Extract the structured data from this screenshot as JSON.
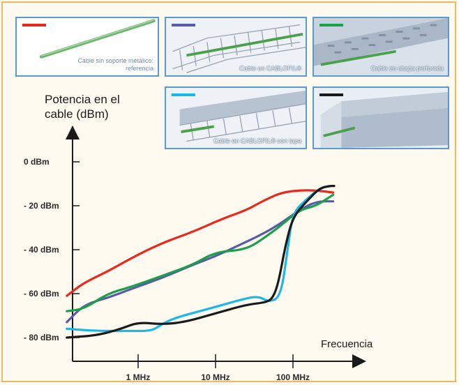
{
  "chart_data": {
    "type": "line",
    "ylabel": "Potencia en el cable (dBm)",
    "xlabel": "Frecuencia",
    "y_ticks": [
      "0 dBm",
      "- 20 dBm",
      "- 40 dBm",
      "- 60 dBm",
      "- 80 dBm"
    ],
    "y_tick_values": [
      0,
      -20,
      -40,
      -60,
      -80
    ],
    "x_ticks": [
      "1 MHz",
      "10 MHz",
      "100 MHz"
    ],
    "x_tick_values": [
      1,
      10,
      100
    ],
    "x_scale": "log",
    "x_range_mhz": [
      0.1,
      400
    ],
    "y_range_dbm": [
      -87,
      5
    ],
    "grid": false,
    "series": [
      {
        "color": "#e8291c",
        "points": [
          [
            0.12,
            -61
          ],
          [
            0.2,
            -55
          ],
          [
            0.4,
            -50
          ],
          [
            0.8,
            -44
          ],
          [
            2,
            -37
          ],
          [
            5,
            -32
          ],
          [
            12,
            -26
          ],
          [
            25,
            -22
          ],
          [
            40,
            -18
          ],
          [
            70,
            -14
          ],
          [
            120,
            -13
          ],
          [
            200,
            -13
          ],
          [
            330,
            -14
          ]
        ]
      },
      {
        "color": "#5a5aaa",
        "points": [
          [
            0.12,
            -73
          ],
          [
            0.2,
            -65
          ],
          [
            0.4,
            -62
          ],
          [
            0.8,
            -58
          ],
          [
            2,
            -53
          ],
          [
            5,
            -47
          ],
          [
            10,
            -43
          ],
          [
            20,
            -38
          ],
          [
            40,
            -33
          ],
          [
            70,
            -28
          ],
          [
            120,
            -22
          ],
          [
            200,
            -18
          ],
          [
            330,
            -18
          ]
        ]
      },
      {
        "color": "#1aa04a",
        "points": [
          [
            0.12,
            -68
          ],
          [
            0.2,
            -67
          ],
          [
            0.4,
            -60
          ],
          [
            0.8,
            -57
          ],
          [
            2,
            -52
          ],
          [
            5,
            -47
          ],
          [
            10,
            -41
          ],
          [
            25,
            -40
          ],
          [
            45,
            -34
          ],
          [
            70,
            -29
          ],
          [
            120,
            -22
          ],
          [
            200,
            -20
          ],
          [
            330,
            -15
          ]
        ]
      },
      {
        "color": "#1ab8e8",
        "points": [
          [
            0.12,
            -76
          ],
          [
            0.3,
            -77
          ],
          [
            0.8,
            -77
          ],
          [
            1.5,
            -77
          ],
          [
            2,
            -74
          ],
          [
            3,
            -71
          ],
          [
            8,
            -67
          ],
          [
            20,
            -63
          ],
          [
            35,
            -61
          ],
          [
            50,
            -64
          ],
          [
            70,
            -61
          ],
          [
            85,
            -40
          ],
          [
            100,
            -23
          ],
          [
            150,
            -17
          ],
          [
            220,
            -12
          ],
          [
            300,
            -11
          ]
        ]
      },
      {
        "color": "#1a1a1a",
        "points": [
          [
            0.12,
            -80
          ],
          [
            0.3,
            -79
          ],
          [
            0.6,
            -76
          ],
          [
            1,
            -73
          ],
          [
            2,
            -74
          ],
          [
            4,
            -73
          ],
          [
            10,
            -69
          ],
          [
            25,
            -65
          ],
          [
            45,
            -64
          ],
          [
            55,
            -62
          ],
          [
            65,
            -55
          ],
          [
            80,
            -38
          ],
          [
            100,
            -25
          ],
          [
            150,
            -18
          ],
          [
            220,
            -12
          ],
          [
            300,
            -11
          ],
          [
            340,
            -11
          ]
        ]
      }
    ]
  },
  "panels": [
    {
      "caption": "Cable sin soporte metálico: referencia",
      "swatch": "#e8291c"
    },
    {
      "caption": "Cable en CABLOFIL®",
      "swatch": "#5a5aaa"
    },
    {
      "caption": "Cable en chapa perforada",
      "swatch": "#1aa04a"
    },
    {
      "caption": "Cable en CABLOFIL® con tapa",
      "swatch": "#1ab8e8"
    },
    {
      "caption": "",
      "swatch": "#1a1a1a"
    }
  ]
}
